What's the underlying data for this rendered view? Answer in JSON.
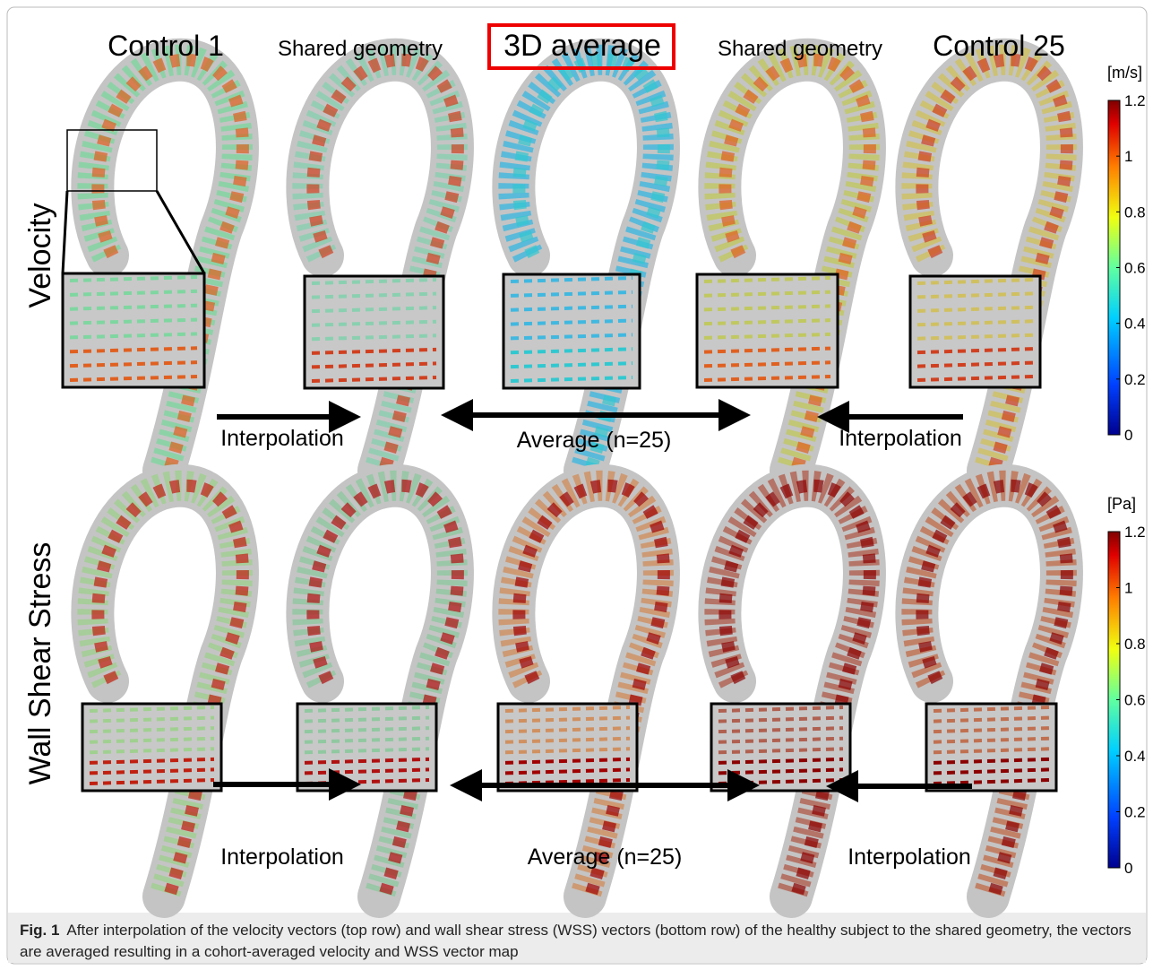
{
  "figure": {
    "column_titles": [
      "Control 1",
      "Shared geometry",
      "3D average",
      "Shared geometry",
      "Control 25"
    ],
    "row_labels": [
      "Velocity",
      "Wall Shear Stress"
    ],
    "arrow_labels": [
      [
        "Interpolation",
        "Average (n=25)",
        "Interpolation"
      ],
      [
        "Interpolation",
        "Average (n=25)",
        "Interpolation"
      ]
    ],
    "colorbars": [
      {
        "unit": "[m/s]",
        "lim": [
          0,
          1.2
        ],
        "ticks": [
          0,
          0.2,
          0.4,
          0.6,
          0.8,
          1,
          1.2
        ]
      },
      {
        "unit": "[Pa]",
        "lim": [
          0,
          1.2
        ],
        "ticks": [
          0,
          0.2,
          0.4,
          0.6,
          0.8,
          1,
          1.2
        ]
      }
    ]
  },
  "caption": {
    "label": "Fig. 1",
    "text": "After interpolation of the velocity vectors (top row) and wall shear stress (WSS) vectors (bottom row) of the healthy subject to the shared geometry, the vectors are averaged resulting in a cohort-averaged velocity and WSS vector map"
  }
}
